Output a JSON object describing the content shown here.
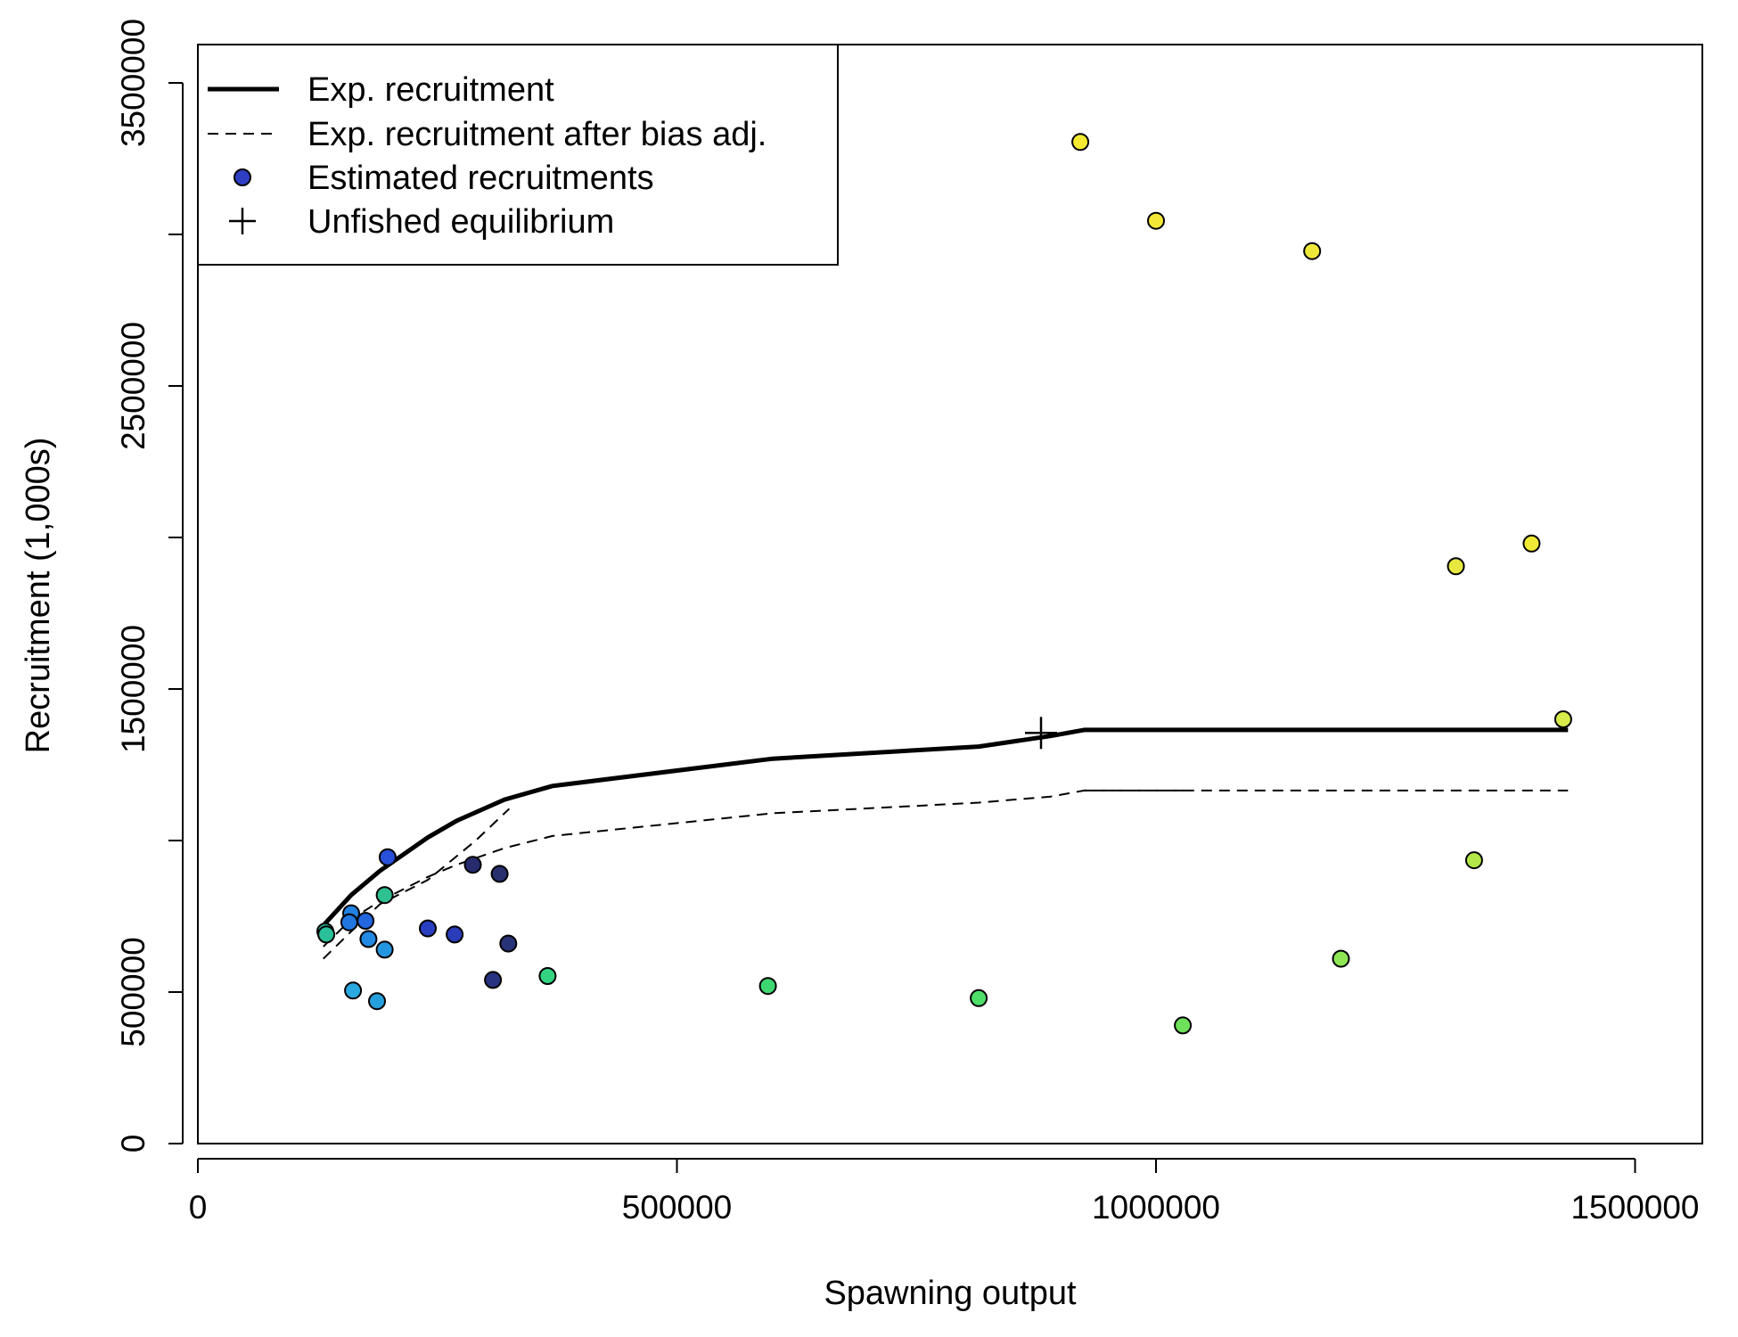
{
  "chart_data": {
    "type": "scatter",
    "title": "",
    "xlabel": "Spawning output",
    "ylabel": "Recruitment (1,000s)",
    "xlim": [
      0,
      1560000
    ],
    "ylim": [
      0,
      3500000
    ],
    "x_ticks": [
      0,
      500000,
      1000000,
      1500000
    ],
    "x_tick_labels": [
      "0",
      "500000",
      "1000000",
      "1500000"
    ],
    "y_ticks": [
      0,
      500000,
      1500000,
      2500000,
      3500000
    ],
    "y_tick_labels": [
      "0",
      "500000",
      "1500000",
      "2500000",
      "3500000"
    ],
    "y_minor_ticks": [
      1000000,
      2000000,
      3000000
    ],
    "grid": false,
    "legend": {
      "position": "top-left",
      "entries": [
        {
          "label": "Exp. recruitment",
          "symbol": "thick-solid-line"
        },
        {
          "label": "Exp. recruitment after bias adj.",
          "symbol": "dashed-line"
        },
        {
          "label": "Estimated recruitments",
          "symbol": "filled-circle",
          "color": "#2f3fc4"
        },
        {
          "label": "Unfished equilibrium",
          "symbol": "plus"
        }
      ]
    },
    "series": [
      {
        "name": "Exp. recruitment",
        "style": "solid",
        "x": [
          131000,
          160000,
          190000,
          240000,
          270000,
          320000,
          370000,
          600000,
          815000,
          890000,
          925000,
          1430000
        ],
        "y": [
          720000,
          820000,
          900000,
          1010000,
          1065000,
          1135000,
          1180000,
          1270000,
          1310000,
          1345000,
          1365000,
          1365000
        ]
      },
      {
        "name": "Exp. recruitment after bias adj.",
        "style": "dashed",
        "x": [
          131000,
          160000,
          190000,
          240000,
          270000,
          320000,
          370000,
          600000,
          815000,
          890000,
          925000,
          1430000
        ],
        "y": [
          650000,
          740000,
          800000,
          880000,
          920000,
          975000,
          1015000,
          1090000,
          1125000,
          1145000,
          1165000,
          1165000
        ]
      },
      {
        "name": "Exp. recruitment after bias adj.",
        "style": "dashed",
        "x": [
          131000,
          160000,
          190000,
          240000,
          290000,
          325000
        ],
        "y": [
          610000,
          700000,
          790000,
          870000,
          1000000,
          1105000
        ]
      },
      {
        "name": "Exp. recruitment after bias adj.",
        "style": "dashed",
        "x": [
          925000,
          1030000
        ],
        "y": [
          1165000,
          1165000
        ]
      }
    ],
    "points": [
      {
        "x": 921000,
        "y": 3305000,
        "color": "#f5ea32"
      },
      {
        "x": 1000000,
        "y": 3045000,
        "color": "#f2e736"
      },
      {
        "x": 1163000,
        "y": 2945000,
        "color": "#eee83a"
      },
      {
        "x": 1313000,
        "y": 1905000,
        "color": "#e6e840"
      },
      {
        "x": 1392000,
        "y": 1980000,
        "color": "#f0ea36"
      },
      {
        "x": 1425000,
        "y": 1400000,
        "color": "#d6ea4a"
      },
      {
        "x": 1332000,
        "y": 935000,
        "color": "#b2e84a"
      },
      {
        "x": 1193000,
        "y": 610000,
        "color": "#8ee654"
      },
      {
        "x": 1028000,
        "y": 390000,
        "color": "#6ee05a"
      },
      {
        "x": 815000,
        "y": 480000,
        "color": "#4ede6a"
      },
      {
        "x": 595000,
        "y": 520000,
        "color": "#3ed872"
      },
      {
        "x": 365000,
        "y": 553000,
        "color": "#32d482"
      },
      {
        "x": 195000,
        "y": 820000,
        "color": "#2ec090"
      },
      {
        "x": 133000,
        "y": 700000,
        "color": "#28b8a0"
      },
      {
        "x": 134000,
        "y": 690000,
        "color": "#2ac09a"
      },
      {
        "x": 162000,
        "y": 505000,
        "color": "#2aa8e0"
      },
      {
        "x": 187000,
        "y": 470000,
        "color": "#26a0dc"
      },
      {
        "x": 195000,
        "y": 640000,
        "color": "#2496e0"
      },
      {
        "x": 178000,
        "y": 675000,
        "color": "#2288e2"
      },
      {
        "x": 160000,
        "y": 760000,
        "color": "#2280e2"
      },
      {
        "x": 175000,
        "y": 735000,
        "color": "#2266e0"
      },
      {
        "x": 158000,
        "y": 730000,
        "color": "#2276e2"
      },
      {
        "x": 198000,
        "y": 945000,
        "color": "#2850d8"
      },
      {
        "x": 240000,
        "y": 710000,
        "color": "#2a3ec0"
      },
      {
        "x": 268000,
        "y": 690000,
        "color": "#2a3cb8"
      },
      {
        "x": 287000,
        "y": 920000,
        "color": "#262c6e"
      },
      {
        "x": 315000,
        "y": 890000,
        "color": "#28306e"
      },
      {
        "x": 324000,
        "y": 660000,
        "color": "#283276"
      },
      {
        "x": 308000,
        "y": 540000,
        "color": "#283480"
      }
    ],
    "unfished_equilibrium": {
      "x": 880000,
      "y": 1355000
    }
  }
}
